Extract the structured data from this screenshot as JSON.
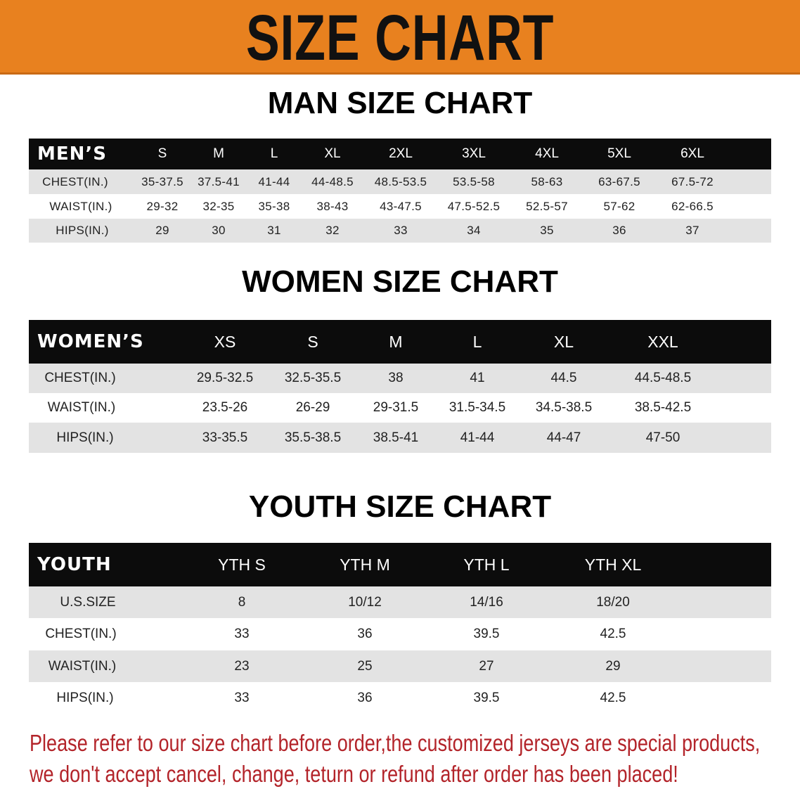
{
  "banner": {
    "title": "SIZE CHART",
    "color": "#e8811f"
  },
  "men": {
    "title": "MAN SIZE CHART",
    "header": [
      "MEN’S",
      "S",
      "M",
      "L",
      "XL",
      "2XL",
      "3XL",
      "4XL",
      "5XL",
      "6XL"
    ],
    "rows": [
      [
        "CHEST(IN.)",
        "35-37.5",
        "37.5-41",
        "41-44",
        "44-48.5",
        "48.5-53.5",
        "53.5-58",
        "58-63",
        "63-67.5",
        "67.5-72"
      ],
      [
        "WAIST(IN.)",
        "29-32",
        "32-35",
        "35-38",
        "38-43",
        "43-47.5",
        "47.5-52.5",
        "52.5-57",
        "57-62",
        "62-66.5"
      ],
      [
        "HIPS(IN.)",
        "29",
        "30",
        "31",
        "32",
        "33",
        "34",
        "35",
        "36",
        "37"
      ]
    ]
  },
  "women": {
    "title": "WOMEN SIZE CHART",
    "header": [
      "WOMEN’S",
      "XS",
      "S",
      "M",
      "L",
      "XL",
      "XXL"
    ],
    "rows": [
      [
        "CHEST(IN.)",
        "29.5-32.5",
        "32.5-35.5",
        "38",
        "41",
        "44.5",
        "44.5-48.5"
      ],
      [
        "WAIST(IN.)",
        "23.5-26",
        "26-29",
        "29-31.5",
        "31.5-34.5",
        "34.5-38.5",
        "38.5-42.5"
      ],
      [
        "HIPS(IN.)",
        "33-35.5",
        "35.5-38.5",
        "38.5-41",
        "41-44",
        "44-47",
        "47-50"
      ]
    ]
  },
  "youth": {
    "title": "YOUTH SIZE CHART",
    "header": [
      "YOUTH",
      "YTH S",
      "YTH M",
      "YTH L",
      "YTH XL"
    ],
    "rows": [
      [
        "U.S.SIZE",
        "8",
        "10/12",
        "14/16",
        "18/20"
      ],
      [
        "CHEST(IN.)",
        "33",
        "36",
        "39.5",
        "42.5"
      ],
      [
        "WAIST(IN.)",
        "23",
        "25",
        "27",
        "29"
      ],
      [
        "HIPS(IN.)",
        "33",
        "36",
        "39.5",
        "42.5"
      ]
    ]
  },
  "note": {
    "line1": "Please refer to our size chart before order,the customized jerseys are special products,",
    "line2": "we don't accept cancel, change, teturn or refund after order has been placed!",
    "color": "#b3242a"
  }
}
